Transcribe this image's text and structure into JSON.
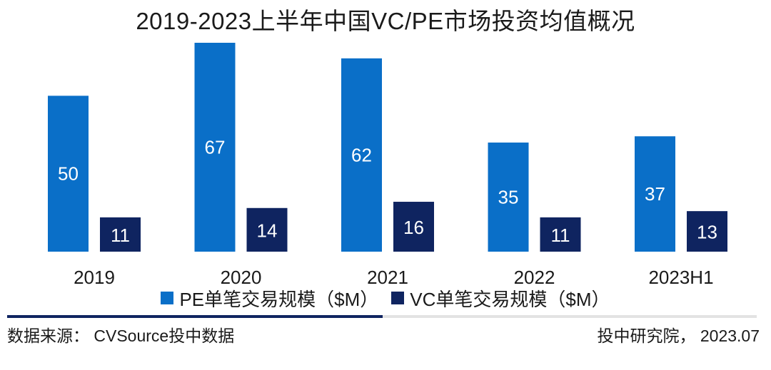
{
  "colors": {
    "pe": "#0a6fc8",
    "vc": "#0f2460",
    "value_label": "#ffffff",
    "divider_dark": "#0f2460"
  },
  "chart_data": {
    "type": "bar",
    "title": "2019-2023上半年中国VC/PE市场投资均值概况",
    "categories": [
      "2019",
      "2020",
      "2021",
      "2022",
      "2023H1"
    ],
    "series": [
      {
        "name": "PE单笔交易规模（$M）",
        "values": [
          50,
          67,
          62,
          35,
          37
        ]
      },
      {
        "name": "VC单笔交易规模（$M）",
        "values": [
          11,
          14,
          16,
          11,
          13
        ]
      }
    ],
    "ylim": [
      0,
      67
    ],
    "grid": false,
    "data_labels": true,
    "legend_position": "bottom"
  },
  "footer": {
    "source": "数据来源：  CVSource投中数据",
    "credit": "投中研究院， 2023.07"
  }
}
